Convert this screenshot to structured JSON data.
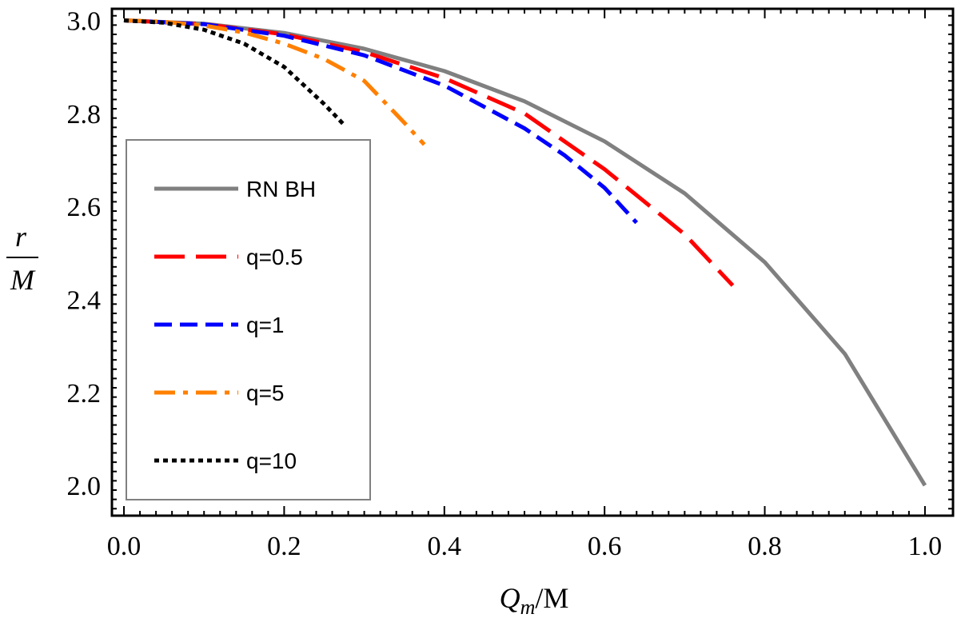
{
  "chart_data": {
    "type": "line",
    "title": "",
    "xlabel": {
      "main": "Q",
      "sub": "m",
      "suffix": "/M"
    },
    "ylabel": {
      "numerator": "r",
      "denominator": "M"
    },
    "xlim": [
      -0.015,
      1.035
    ],
    "ylim": [
      1.935,
      3.025
    ],
    "xticks": [
      0.0,
      0.2,
      0.4,
      0.6,
      0.8,
      1.0
    ],
    "xtick_labels": [
      "0.0",
      "0.2",
      "0.4",
      "0.6",
      "0.8",
      "1.0"
    ],
    "yticks": [
      2.0,
      2.2,
      2.4,
      2.6,
      2.8,
      3.0
    ],
    "ytick_labels": [
      "2.0",
      "2.2",
      "2.4",
      "2.6",
      "2.8",
      "3.0"
    ],
    "legend_position": "left",
    "series": [
      {
        "name": "RN BH",
        "color": "#808080",
        "style": "solid",
        "x": [
          0,
          0.1,
          0.2,
          0.3,
          0.4,
          0.5,
          0.6,
          0.7,
          0.8,
          0.9,
          1.0
        ],
        "y": [
          3.0,
          2.993,
          2.973,
          2.939,
          2.891,
          2.826,
          2.74,
          2.628,
          2.48,
          2.283,
          2.0
        ]
      },
      {
        "name": "q=0.5",
        "color": "#ff0000",
        "style": "longdash",
        "x": [
          0,
          0.1,
          0.2,
          0.3,
          0.4,
          0.5,
          0.6,
          0.7,
          0.76
        ],
        "y": [
          3.0,
          2.992,
          2.97,
          2.932,
          2.876,
          2.8,
          2.68,
          2.54,
          2.43
        ]
      },
      {
        "name": "q=1",
        "color": "#0000ff",
        "style": "dash",
        "x": [
          0,
          0.1,
          0.2,
          0.3,
          0.4,
          0.5,
          0.55,
          0.6,
          0.64
        ],
        "y": [
          3.0,
          2.992,
          2.967,
          2.925,
          2.86,
          2.768,
          2.71,
          2.64,
          2.565
        ]
      },
      {
        "name": "q=5",
        "color": "#ff8000",
        "style": "dashdot",
        "x": [
          0,
          0.05,
          0.1,
          0.15,
          0.2,
          0.25,
          0.3,
          0.35,
          0.375
        ],
        "y": [
          3.0,
          2.997,
          2.989,
          2.974,
          2.95,
          2.917,
          2.87,
          2.78,
          2.733
        ]
      },
      {
        "name": "q=10",
        "color": "#000000",
        "style": "dot",
        "x": [
          0,
          0.05,
          0.1,
          0.15,
          0.2,
          0.25,
          0.275
        ],
        "y": [
          3.0,
          2.995,
          2.98,
          2.95,
          2.9,
          2.82,
          2.775
        ]
      }
    ]
  }
}
